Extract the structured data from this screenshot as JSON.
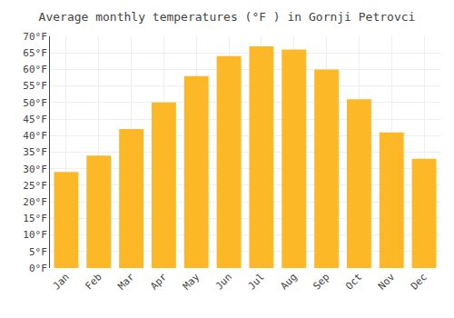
{
  "chart_data": {
    "type": "bar",
    "title": "Average monthly temperatures (°F ) in Gornji Petrovci",
    "categories": [
      "Jan",
      "Feb",
      "Mar",
      "Apr",
      "May",
      "Jun",
      "Jul",
      "Aug",
      "Sep",
      "Oct",
      "Nov",
      "Dec"
    ],
    "values": [
      29,
      34,
      42,
      50,
      58,
      64,
      67,
      66,
      60,
      51,
      41,
      33
    ],
    "color": "#FDB827",
    "ylim": [
      0,
      70
    ],
    "yticks": [
      {
        "value": 0,
        "label": "0°F"
      },
      {
        "value": 5,
        "label": "5°F"
      },
      {
        "value": 10,
        "label": "10°F"
      },
      {
        "value": 15,
        "label": "15°F"
      },
      {
        "value": 20,
        "label": "20°F"
      },
      {
        "value": 25,
        "label": "25°F"
      },
      {
        "value": 30,
        "label": "30°F"
      },
      {
        "value": 35,
        "label": "35°F"
      },
      {
        "value": 40,
        "label": "40°F"
      },
      {
        "value": 45,
        "label": "45°F"
      },
      {
        "value": 50,
        "label": "50°F"
      },
      {
        "value": 55,
        "label": "55°F"
      },
      {
        "value": 60,
        "label": "60°F"
      },
      {
        "value": 65,
        "label": "65°F"
      },
      {
        "value": 70,
        "label": "70°F"
      }
    ],
    "grid": true
  }
}
